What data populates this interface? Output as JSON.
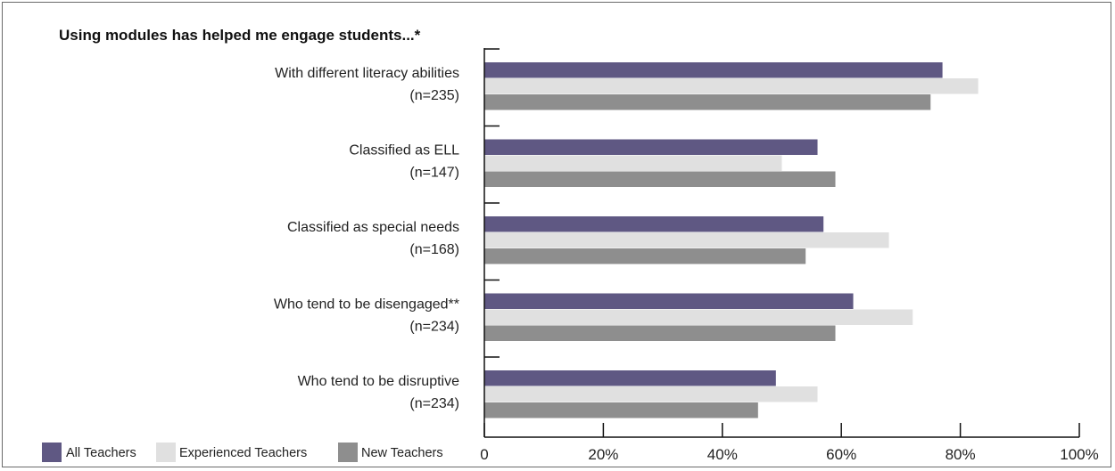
{
  "chart_data": {
    "type": "bar",
    "orientation": "horizontal",
    "title": "Using modules has helped me engage students...*",
    "categories": [
      {
        "label": "With different literacy abilities",
        "n": "(n=235)"
      },
      {
        "label": "Classified as ELL",
        "n": "(n=147)"
      },
      {
        "label": "Classified as special needs",
        "n": "(n=168)"
      },
      {
        "label": "Who tend to be disengaged**",
        "n": "(n=234)"
      },
      {
        "label": "Who tend to be disruptive",
        "n": "(n=234)"
      }
    ],
    "series": [
      {
        "name": "All Teachers",
        "color": "#5f5883",
        "values": [
          77,
          56,
          57,
          62,
          49
        ]
      },
      {
        "name": "Experienced Teachers",
        "color": "#e0e0e0",
        "values": [
          83,
          50,
          68,
          72,
          56
        ]
      },
      {
        "name": "New Teachers",
        "color": "#8e8e8e",
        "values": [
          75,
          59,
          54,
          59,
          46
        ]
      }
    ],
    "xlim": [
      0,
      100
    ],
    "xticks": [
      "0",
      "20%",
      "40%",
      "60%",
      "80%",
      "100%"
    ],
    "legend": "bottom-left",
    "grid": false
  }
}
